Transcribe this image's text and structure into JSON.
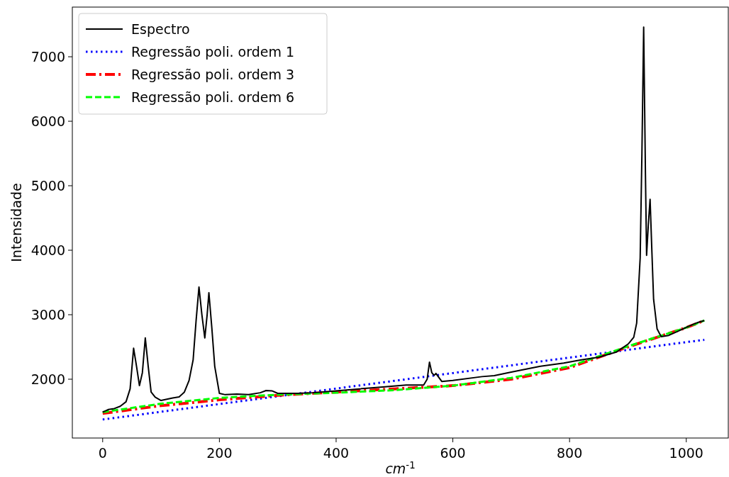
{
  "chart_data": {
    "type": "line",
    "xlabel": "cm$^{-1}$",
    "ylabel": "Intensidade",
    "xlim": [
      -52,
      1072
    ],
    "ylim": [
      1088,
      7770
    ],
    "xticks": [
      0,
      200,
      400,
      600,
      800,
      1000
    ],
    "yticks": [
      2000,
      3000,
      4000,
      5000,
      6000,
      7000
    ],
    "grid": false,
    "legend": "top left",
    "marker": "none",
    "series": [
      {
        "name": "Espectro",
        "color": "#000000",
        "line_style": "solid",
        "x": [
          0,
          5,
          10,
          20,
          30,
          40,
          47,
          53,
          58,
          63,
          68,
          73,
          78,
          83,
          90,
          100,
          110,
          120,
          131,
          140,
          148,
          155,
          160,
          165,
          170,
          175,
          179,
          182,
          187,
          192,
          200,
          210,
          230,
          250,
          270,
          280,
          290,
          300,
          334,
          360,
          400,
          440,
          480,
          520,
          550,
          556,
          560,
          564,
          568,
          571,
          575,
          581,
          600,
          650,
          671,
          700,
          750,
          790,
          820,
          850,
          880,
          901,
          910,
          915,
          921,
          924,
          927,
          930,
          932,
          935,
          938,
          941,
          944,
          950,
          957,
          970,
          985,
          1004,
          1020,
          1031
        ],
        "values": [
          1490,
          1510,
          1530,
          1545,
          1580,
          1650,
          1850,
          2480,
          2200,
          1900,
          2100,
          2640,
          2200,
          1800,
          1720,
          1670,
          1690,
          1710,
          1725,
          1800,
          1980,
          2300,
          2900,
          3430,
          3000,
          2640,
          3000,
          3340,
          2800,
          2200,
          1780,
          1760,
          1770,
          1760,
          1790,
          1824,
          1820,
          1780,
          1780,
          1790,
          1820,
          1850,
          1880,
          1910,
          1910,
          2000,
          2265,
          2100,
          2060,
          2090,
          2040,
          1965,
          1980,
          2040,
          2055,
          2110,
          2200,
          2250,
          2300,
          2340,
          2420,
          2550,
          2650,
          2870,
          3880,
          5500,
          7460,
          5200,
          3920,
          4400,
          4790,
          4000,
          3240,
          2780,
          2660,
          2680,
          2740,
          2820,
          2880,
          2910
        ]
      },
      {
        "name": "Regressão poli. ordem 1",
        "color": "#0000ff",
        "line_style": "dotted",
        "x": [
          0,
          100,
          200,
          300,
          400,
          500,
          600,
          700,
          800,
          900,
          1000,
          1031
        ],
        "values": [
          1375,
          1495,
          1615,
          1735,
          1855,
          1975,
          2095,
          2215,
          2335,
          2455,
          2575,
          2610
        ]
      },
      {
        "name": "Regressão poli. ordem 3",
        "color": "#ff0000",
        "line_style": "dashdot",
        "x": [
          0,
          100,
          200,
          300,
          400,
          500,
          600,
          700,
          800,
          900,
          1000,
          1031
        ],
        "values": [
          1470,
          1590,
          1680,
          1750,
          1800,
          1850,
          1900,
          2000,
          2180,
          2500,
          2800,
          2910
        ]
      },
      {
        "name": "Regressão poli. ordem 6",
        "color": "#00ff00",
        "line_style": "dashed",
        "x": [
          0,
          100,
          200,
          300,
          400,
          500,
          600,
          700,
          800,
          900,
          1000,
          1031
        ],
        "values": [
          1490,
          1620,
          1710,
          1760,
          1790,
          1830,
          1900,
          2020,
          2200,
          2510,
          2800,
          2910
        ]
      }
    ]
  }
}
